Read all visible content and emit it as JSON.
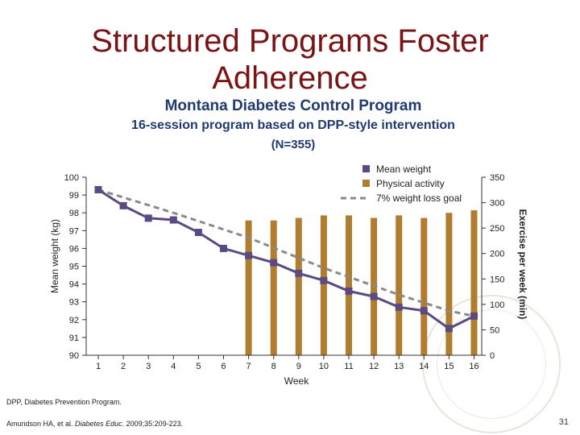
{
  "slide": {
    "title_line1": "Structured Programs Foster",
    "title_line2": "Adherence",
    "subtitle1": "Montana Diabetes Control Program",
    "subtitle2": "16-session program based on DPP-style intervention",
    "subtitle3": "(N=355)",
    "footnote1": "DPP, Diabetes Prevention Program.",
    "footnote2_prefix": "Amundson HA, et al. ",
    "footnote2_journal": "Diabetes Educ",
    "footnote2_suffix": ". 2009;35:209-223.",
    "page_number": "31"
  },
  "chart_data": {
    "type": "bar+line",
    "xlabel": "Week",
    "ylabel_left": "Mean weight (kg)",
    "ylabel_right": "Exercise per week (min)",
    "x": [
      1,
      2,
      3,
      4,
      5,
      6,
      7,
      8,
      9,
      10,
      11,
      12,
      13,
      14,
      15,
      16
    ],
    "ylim_left": [
      90,
      100
    ],
    "yticks_left": [
      90,
      91,
      92,
      93,
      94,
      95,
      96,
      97,
      98,
      99,
      100
    ],
    "ylim_right": [
      0,
      350
    ],
    "yticks_right": [
      0,
      50,
      100,
      150,
      200,
      250,
      300,
      350
    ],
    "grid": false,
    "legend_position": "top-right",
    "series": [
      {
        "name": "Mean weight",
        "type": "line",
        "axis": "left",
        "color": "#5b4a82",
        "values": [
          99.3,
          98.4,
          97.7,
          97.6,
          96.9,
          96.0,
          95.6,
          95.2,
          94.6,
          94.2,
          93.6,
          93.3,
          92.7,
          92.5,
          91.5,
          92.2
        ]
      },
      {
        "name": "Physical activity",
        "type": "bar",
        "axis": "right",
        "color": "#b07d2e",
        "values": [
          0,
          0,
          0,
          0,
          0,
          0,
          265,
          265,
          270,
          275,
          275,
          270,
          275,
          270,
          280,
          285
        ]
      },
      {
        "name": "7% weight loss goal",
        "type": "line",
        "axis": "left",
        "style": "dashed",
        "color": "#8a8a8a",
        "points": [
          [
            1,
            99.3
          ],
          [
            4,
            98.0
          ],
          [
            7,
            96.6
          ],
          [
            10,
            94.9
          ],
          [
            13,
            93.4
          ],
          [
            15,
            92.5
          ],
          [
            16,
            92.2
          ]
        ]
      }
    ]
  }
}
